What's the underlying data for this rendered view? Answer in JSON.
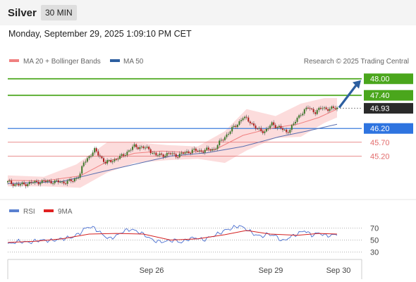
{
  "header": {
    "instrument": "Silver",
    "timeframe": "30 MIN"
  },
  "datetime": "Monday, September 29, 2025 1:09:10 PM CET",
  "legend": {
    "ma20": "MA 20 + Bollinger Bands",
    "ma50": "MA 50",
    "rsi": "RSI",
    "rsi_ma": "9MA",
    "copyright": "Research © 2025 Trading Central"
  },
  "colors": {
    "up": "#4aa61c",
    "support": "#3b7ddd",
    "down": "#e26b6b",
    "band": "#fbd6d6",
    "ma20": "#f08080",
    "ma50": "#5a6fb0",
    "arrow": "#2d5fa0"
  },
  "chart_data": [
    {
      "type": "line",
      "ylim": [
        43.6,
        48.3
      ],
      "x_labels": [
        "Sep 26",
        "Sep 29",
        "Sep 30"
      ],
      "levels": [
        {
          "label": "48.00",
          "value": 48.0,
          "kind": "resistance"
        },
        {
          "label": "47.40",
          "value": 47.4,
          "kind": "resistance"
        },
        {
          "label": "46.93",
          "value": 46.93,
          "kind": "last"
        },
        {
          "label": "46.20",
          "value": 46.2,
          "kind": "pivot"
        },
        {
          "label": "45.70",
          "value": 45.7,
          "kind": "support"
        },
        {
          "label": "45.20",
          "value": 45.2,
          "kind": "support"
        }
      ],
      "price_path": [
        [
          0,
          44.25
        ],
        [
          6,
          44.15
        ],
        [
          12,
          44.22
        ],
        [
          18,
          44.27
        ],
        [
          24,
          44.28
        ],
        [
          30,
          44.25
        ],
        [
          36,
          44.3
        ],
        [
          40,
          44.55
        ],
        [
          42,
          44.95
        ],
        [
          45,
          45.2
        ],
        [
          48,
          45.4
        ],
        [
          51,
          45.2
        ],
        [
          54,
          44.95
        ],
        [
          58,
          45.05
        ],
        [
          62,
          45.15
        ],
        [
          66,
          45.35
        ],
        [
          70,
          45.55
        ],
        [
          74,
          45.52
        ],
        [
          78,
          45.45
        ],
        [
          82,
          45.22
        ],
        [
          86,
          45.25
        ],
        [
          90,
          45.28
        ],
        [
          94,
          45.22
        ],
        [
          98,
          45.32
        ],
        [
          102,
          45.4
        ],
        [
          106,
          45.38
        ],
        [
          110,
          45.42
        ],
        [
          114,
          45.45
        ],
        [
          118,
          45.75
        ],
        [
          122,
          46.05
        ],
        [
          126,
          46.3
        ],
        [
          130,
          46.6
        ],
        [
          134,
          46.45
        ],
        [
          138,
          46.15
        ],
        [
          142,
          46.1
        ],
        [
          146,
          46.35
        ],
        [
          150,
          46.25
        ],
        [
          154,
          46.05
        ],
        [
          158,
          46.35
        ],
        [
          162,
          46.75
        ],
        [
          166,
          46.95
        ],
        [
          170,
          46.8
        ],
        [
          174,
          46.95
        ],
        [
          178,
          46.9
        ],
        [
          182,
          46.95
        ]
      ],
      "ma20": [
        [
          0,
          44.32
        ],
        [
          20,
          44.3
        ],
        [
          40,
          44.48
        ],
        [
          55,
          45.0
        ],
        [
          70,
          45.3
        ],
        [
          85,
          45.38
        ],
        [
          100,
          45.33
        ],
        [
          115,
          45.45
        ],
        [
          130,
          45.95
        ],
        [
          145,
          46.2
        ],
        [
          160,
          46.35
        ],
        [
          172,
          46.6
        ],
        [
          182,
          46.9
        ]
      ],
      "ma50": [
        [
          0,
          44.2
        ],
        [
          30,
          44.28
        ],
        [
          50,
          44.6
        ],
        [
          70,
          44.9
        ],
        [
          90,
          45.2
        ],
        [
          110,
          45.32
        ],
        [
          130,
          45.55
        ],
        [
          150,
          45.9
        ],
        [
          165,
          46.1
        ],
        [
          182,
          46.35
        ]
      ],
      "bb_upper": [
        [
          0,
          44.5
        ],
        [
          20,
          44.45
        ],
        [
          38,
          44.9
        ],
        [
          55,
          45.7
        ],
        [
          70,
          45.7
        ],
        [
          88,
          45.6
        ],
        [
          105,
          45.55
        ],
        [
          120,
          46.1
        ],
        [
          132,
          46.9
        ],
        [
          148,
          46.65
        ],
        [
          162,
          47.1
        ],
        [
          175,
          47.3
        ],
        [
          182,
          47.3
        ]
      ],
      "bb_lower": [
        [
          0,
          44.1
        ],
        [
          20,
          44.1
        ],
        [
          40,
          44.05
        ],
        [
          55,
          44.6
        ],
        [
          70,
          44.95
        ],
        [
          88,
          45.05
        ],
        [
          105,
          45.1
        ],
        [
          120,
          44.95
        ],
        [
          132,
          45.4
        ],
        [
          148,
          45.85
        ],
        [
          162,
          45.9
        ],
        [
          175,
          46.4
        ],
        [
          182,
          46.6
        ]
      ]
    },
    {
      "type": "line",
      "ylim": [
        20,
        80
      ],
      "y_ticks": [
        70,
        50,
        30
      ],
      "rsi": [
        [
          0,
          43
        ],
        [
          6,
          48
        ],
        [
          12,
          46
        ],
        [
          18,
          50
        ],
        [
          24,
          49
        ],
        [
          30,
          52
        ],
        [
          36,
          55
        ],
        [
          40,
          62
        ],
        [
          44,
          72
        ],
        [
          48,
          70
        ],
        [
          52,
          60
        ],
        [
          56,
          52
        ],
        [
          60,
          57
        ],
        [
          64,
          65
        ],
        [
          68,
          68
        ],
        [
          72,
          64
        ],
        [
          76,
          58
        ],
        [
          80,
          50
        ],
        [
          84,
          47
        ],
        [
          88,
          48
        ],
        [
          92,
          50
        ],
        [
          96,
          46
        ],
        [
          100,
          52
        ],
        [
          104,
          54
        ],
        [
          108,
          50
        ],
        [
          112,
          55
        ],
        [
          116,
          60
        ],
        [
          120,
          66
        ],
        [
          124,
          70
        ],
        [
          128,
          74
        ],
        [
          132,
          68
        ],
        [
          136,
          60
        ],
        [
          140,
          56
        ],
        [
          144,
          60
        ],
        [
          148,
          57
        ],
        [
          152,
          48
        ],
        [
          156,
          55
        ],
        [
          160,
          60
        ],
        [
          164,
          66
        ],
        [
          168,
          58
        ],
        [
          172,
          62
        ],
        [
          176,
          57
        ],
        [
          182,
          59
        ]
      ],
      "rsi_ma": [
        [
          0,
          46
        ],
        [
          15,
          48
        ],
        [
          30,
          52
        ],
        [
          45,
          60
        ],
        [
          60,
          61
        ],
        [
          75,
          60
        ],
        [
          90,
          50
        ],
        [
          105,
          52
        ],
        [
          120,
          59
        ],
        [
          132,
          66
        ],
        [
          145,
          60
        ],
        [
          160,
          58
        ],
        [
          172,
          61
        ],
        [
          182,
          60
        ]
      ]
    }
  ]
}
